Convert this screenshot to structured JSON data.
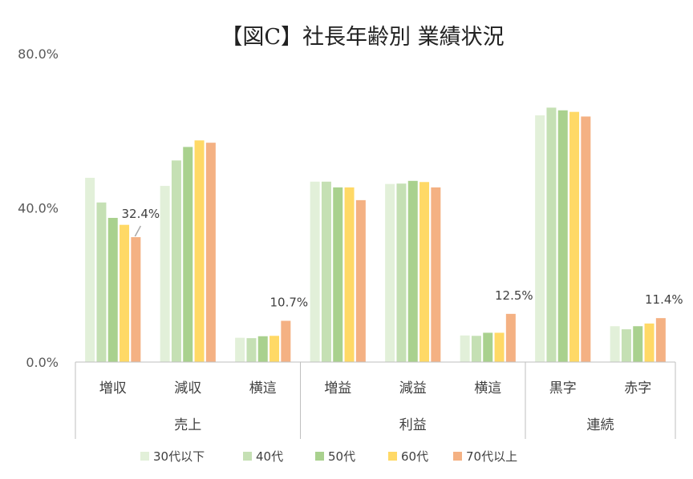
{
  "chart_data": {
    "type": "bar",
    "title": "【図C】社長年齢別 業績状況",
    "xlabel": "",
    "ylabel": "",
    "ylim": [
      0,
      80
    ],
    "y_ticks": [
      "0.0%",
      "40.0%",
      "80.0%"
    ],
    "y_tick_values": [
      0,
      40,
      80
    ],
    "grid": false,
    "legend_position": "bottom",
    "groups": [
      {
        "label": "売上",
        "categories": [
          "増収",
          "減収",
          "横這"
        ]
      },
      {
        "label": "利益",
        "categories": [
          "増益",
          "減益",
          "横這"
        ]
      },
      {
        "label": "連続",
        "categories": [
          "黒字",
          "赤字"
        ]
      }
    ],
    "categories": [
      "増収",
      "減収",
      "横這",
      "増益",
      "減益",
      "横這",
      "黒字",
      "赤字"
    ],
    "series": [
      {
        "name": "30代以下",
        "color": "#e2f0d9",
        "values": [
          47.8,
          45.7,
          6.3,
          46.8,
          46.2,
          6.9,
          64.0,
          9.3
        ]
      },
      {
        "name": "40代",
        "color": "#c5e0b4",
        "values": [
          41.4,
          52.3,
          6.2,
          46.8,
          46.3,
          6.8,
          66.0,
          8.5
        ]
      },
      {
        "name": "50代",
        "color": "#a9d18e",
        "values": [
          37.4,
          55.8,
          6.7,
          45.3,
          47.0,
          7.6,
          65.3,
          9.3
        ]
      },
      {
        "name": "60代",
        "color": "#ffd966",
        "values": [
          35.6,
          57.5,
          6.8,
          45.3,
          46.7,
          7.6,
          64.9,
          10.0
        ]
      },
      {
        "name": "70代以上",
        "color": "#f4b183",
        "values": [
          32.4,
          56.9,
          10.7,
          42.0,
          45.3,
          12.5,
          63.7,
          11.4
        ]
      }
    ],
    "data_labels": [
      {
        "series": 4,
        "category": 0,
        "text": "32.4%"
      },
      {
        "series": 4,
        "category": 2,
        "text": "10.7%"
      },
      {
        "series": 4,
        "category": 5,
        "text": "12.5%"
      },
      {
        "series": 4,
        "category": 7,
        "text": "11.4%"
      }
    ]
  }
}
